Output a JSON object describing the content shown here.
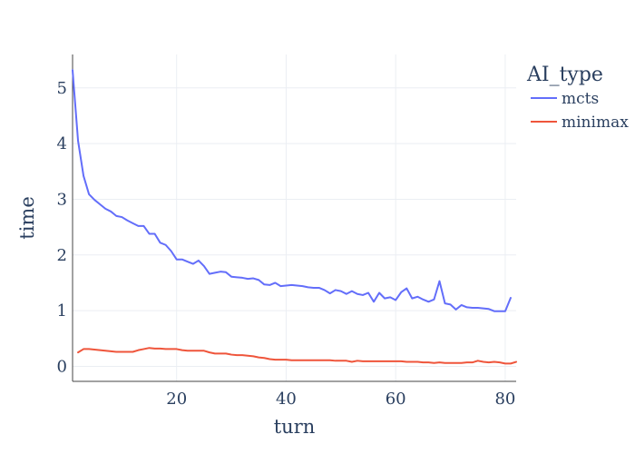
{
  "chart_data": {
    "type": "line",
    "xlabel": "turn",
    "ylabel": "time",
    "xlim": [
      1,
      82
    ],
    "ylim": [
      -0.27,
      5.6
    ],
    "x_ticks": [
      20,
      40,
      60,
      80
    ],
    "y_ticks": [
      0,
      1,
      2,
      3,
      4,
      5
    ],
    "grid": true,
    "legend": {
      "title": "AI_type",
      "position": "right"
    },
    "series": [
      {
        "name": "mcts",
        "color": "#636efa",
        "x": [
          1,
          2,
          3,
          4,
          5,
          6,
          7,
          8,
          9,
          10,
          11,
          12,
          13,
          14,
          15,
          16,
          17,
          18,
          19,
          20,
          21,
          22,
          23,
          24,
          25,
          26,
          27,
          28,
          29,
          30,
          31,
          32,
          33,
          34,
          35,
          36,
          37,
          38,
          39,
          40,
          41,
          42,
          43,
          44,
          45,
          46,
          47,
          48,
          49,
          50,
          51,
          52,
          53,
          54,
          55,
          56,
          57,
          58,
          59,
          60,
          61,
          62,
          63,
          64,
          65,
          66,
          67,
          68,
          69,
          70,
          71,
          72,
          73,
          74,
          75,
          76,
          77,
          78,
          79,
          80,
          81
        ],
        "y": [
          5.32,
          4.05,
          3.42,
          3.09,
          2.99,
          2.91,
          2.83,
          2.78,
          2.7,
          2.68,
          2.62,
          2.57,
          2.52,
          2.52,
          2.38,
          2.38,
          2.22,
          2.18,
          2.07,
          1.92,
          1.92,
          1.88,
          1.84,
          1.9,
          1.8,
          1.66,
          1.68,
          1.7,
          1.69,
          1.61,
          1.6,
          1.59,
          1.57,
          1.58,
          1.55,
          1.47,
          1.46,
          1.5,
          1.44,
          1.45,
          1.46,
          1.45,
          1.44,
          1.42,
          1.41,
          1.41,
          1.37,
          1.31,
          1.37,
          1.35,
          1.3,
          1.35,
          1.3,
          1.28,
          1.32,
          1.16,
          1.32,
          1.22,
          1.24,
          1.19,
          1.33,
          1.4,
          1.22,
          1.25,
          1.2,
          1.16,
          1.2,
          1.53,
          1.13,
          1.11,
          1.02,
          1.1,
          1.06,
          1.05,
          1.05,
          1.04,
          1.03,
          0.99,
          0.99,
          0.99,
          1.23
        ]
      },
      {
        "name": "minimax",
        "color": "#ef553b",
        "x": [
          2,
          3,
          4,
          5,
          6,
          7,
          8,
          9,
          10,
          11,
          12,
          13,
          14,
          15,
          16,
          17,
          18,
          19,
          20,
          21,
          22,
          23,
          24,
          25,
          26,
          27,
          28,
          29,
          30,
          31,
          32,
          33,
          34,
          35,
          36,
          37,
          38,
          39,
          40,
          41,
          42,
          43,
          44,
          45,
          46,
          47,
          48,
          49,
          50,
          51,
          52,
          53,
          54,
          55,
          56,
          57,
          58,
          59,
          60,
          61,
          62,
          63,
          64,
          65,
          66,
          67,
          68,
          69,
          70,
          71,
          72,
          73,
          74,
          75,
          76,
          77,
          78,
          79,
          80,
          81,
          82
        ],
        "y": [
          0.25,
          0.31,
          0.31,
          0.3,
          0.29,
          0.28,
          0.27,
          0.26,
          0.26,
          0.26,
          0.26,
          0.29,
          0.31,
          0.33,
          0.32,
          0.32,
          0.31,
          0.31,
          0.31,
          0.29,
          0.28,
          0.28,
          0.28,
          0.28,
          0.25,
          0.23,
          0.23,
          0.23,
          0.21,
          0.2,
          0.2,
          0.19,
          0.18,
          0.16,
          0.15,
          0.13,
          0.12,
          0.12,
          0.12,
          0.11,
          0.11,
          0.11,
          0.11,
          0.11,
          0.11,
          0.11,
          0.11,
          0.1,
          0.1,
          0.1,
          0.08,
          0.1,
          0.09,
          0.09,
          0.09,
          0.09,
          0.09,
          0.09,
          0.09,
          0.09,
          0.08,
          0.08,
          0.08,
          0.07,
          0.07,
          0.06,
          0.07,
          0.06,
          0.06,
          0.06,
          0.06,
          0.07,
          0.07,
          0.1,
          0.08,
          0.07,
          0.08,
          0.07,
          0.05,
          0.05,
          0.08
        ]
      }
    ]
  }
}
